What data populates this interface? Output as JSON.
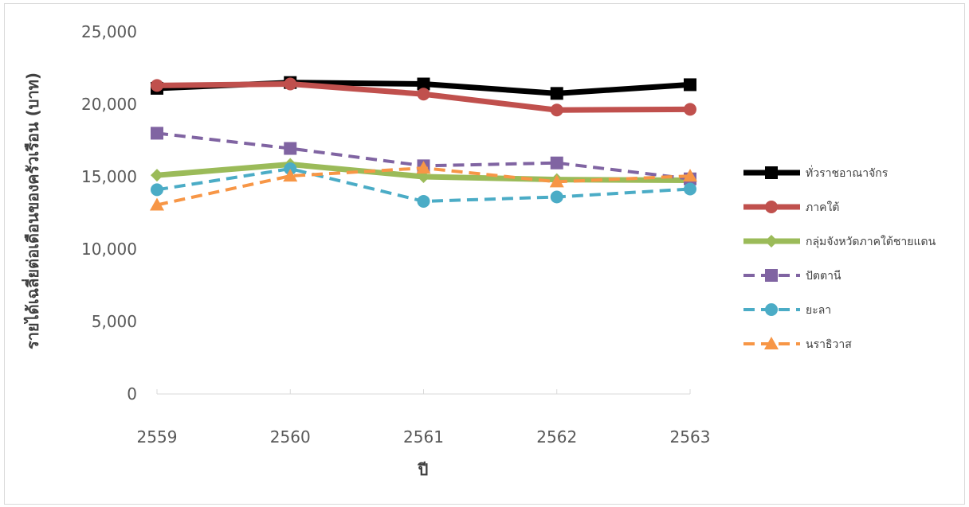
{
  "chart_data": {
    "type": "line",
    "title": "",
    "xlabel": "ปี",
    "ylabel": "รายได้เฉลี่ยต่อเดือนของครัวเรือน (บาท)",
    "categories": [
      "2559",
      "2560",
      "2561",
      "2562",
      "2563"
    ],
    "ylim": [
      0,
      25000
    ],
    "yticks": [
      0,
      5000,
      10000,
      15000,
      20000,
      25000
    ],
    "ytick_labels": [
      "0",
      "5,000",
      "10,000",
      "15,000",
      "20,000",
      "25,000"
    ],
    "grid": false,
    "legend_position": "right",
    "series": [
      {
        "name": "ทั่วราชอาณาจักร",
        "values": [
          21100,
          21500,
          21400,
          20750,
          21350
        ],
        "color": "#000000",
        "dash": false,
        "marker": "square",
        "width": "thick"
      },
      {
        "name": "ภาคใต้",
        "values": [
          21300,
          21400,
          20700,
          19600,
          19650
        ],
        "color": "#c0504d",
        "dash": false,
        "marker": "circle",
        "width": "thick"
      },
      {
        "name": "กลุ่มจังหวัดภาคใต้ชายแดน",
        "values": [
          15100,
          15850,
          15000,
          14800,
          14750
        ],
        "color": "#9bbb59",
        "dash": false,
        "marker": "diamond",
        "width": "thick"
      },
      {
        "name": "ปัตตานี",
        "values": [
          18000,
          16950,
          15750,
          15950,
          14850
        ],
        "color": "#8064a2",
        "dash": true,
        "marker": "square",
        "width": "thin"
      },
      {
        "name": "ยะลา",
        "values": [
          14100,
          15550,
          13300,
          13600,
          14150
        ],
        "color": "#4bacc6",
        "dash": true,
        "marker": "circle",
        "width": "thin"
      },
      {
        "name": "นราธิวาส",
        "values": [
          13050,
          15050,
          15600,
          14650,
          15050
        ],
        "color": "#f79646",
        "dash": true,
        "marker": "triangle",
        "width": "thin"
      }
    ]
  }
}
